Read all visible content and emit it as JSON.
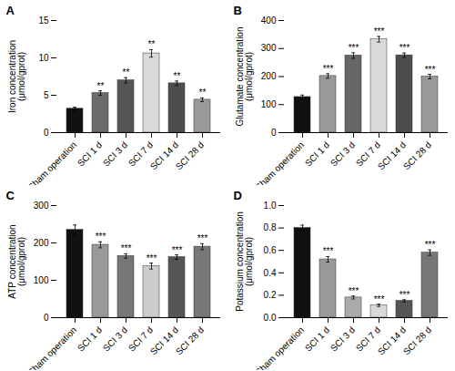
{
  "chart_data": [
    {
      "type": "bar",
      "title": "A",
      "ylabel": "Iron concentration\n(μmol/gprot)",
      "categories": [
        "Sham operation",
        "SCI 1 d",
        "SCI 3 d",
        "SCI 7 d",
        "SCI 14 d",
        "SCI 28 d"
      ],
      "values": [
        3.2,
        5.3,
        7.0,
        10.6,
        6.6,
        4.4
      ],
      "errors": [
        0.2,
        0.3,
        0.35,
        0.5,
        0.3,
        0.25
      ],
      "colors": [
        "#111111",
        "#6b6b6b",
        "#555555",
        "#d9d9d9",
        "#4d4d4d",
        "#999999"
      ],
      "annotations": [
        null,
        "**",
        "**",
        "**",
        "**",
        "**"
      ],
      "ylim": [
        0,
        15
      ],
      "yticks": [
        0,
        5,
        10,
        15
      ],
      "grid": false
    },
    {
      "type": "bar",
      "title": "B",
      "ylabel": "Glutamate concentration\n(μmol/gprot)",
      "categories": [
        "Sham operation",
        "SCI 1 d",
        "SCI 3 d",
        "SCI 7 d",
        "SCI 14 d",
        "SCI 28 d"
      ],
      "values": [
        127,
        202,
        275,
        333,
        276,
        200
      ],
      "errors": [
        7,
        8,
        10,
        10,
        8,
        8
      ],
      "colors": [
        "#111111",
        "#999999",
        "#666666",
        "#d9d9d9",
        "#4d4d4d",
        "#999999"
      ],
      "annotations": [
        null,
        "***",
        "***",
        "***",
        "***",
        "***"
      ],
      "ylim": [
        0,
        400
      ],
      "yticks": [
        0,
        100,
        200,
        300,
        400
      ],
      "grid": false
    },
    {
      "type": "bar",
      "title": "C",
      "ylabel": "ATP concentration\n(μmol/gprot)",
      "categories": [
        "Sham operation",
        "SCI 1 d",
        "SCI 3 d",
        "SCI 7 d",
        "SCI 14 d",
        "SCI 28 d"
      ],
      "values": [
        235,
        195,
        165,
        138,
        162,
        190
      ],
      "errors": [
        13,
        8,
        6,
        8,
        6,
        8
      ],
      "colors": [
        "#111111",
        "#999999",
        "#777777",
        "#cccccc",
        "#555555",
        "#777777"
      ],
      "annotations": [
        null,
        "***",
        "***",
        "***",
        "***",
        "***"
      ],
      "ylim": [
        0,
        300
      ],
      "yticks": [
        0,
        100,
        200,
        300
      ],
      "grid": false
    },
    {
      "type": "bar",
      "title": "D",
      "ylabel": "Potassium concentration\n(μmol/gprot)",
      "categories": [
        "Sham operation",
        "SCI 1 d",
        "SCI 3 d",
        "SCI 7 d",
        "SCI 14 d",
        "SCI 28 d"
      ],
      "values": [
        0.8,
        0.52,
        0.18,
        0.11,
        0.15,
        0.58
      ],
      "errors": [
        0.025,
        0.025,
        0.013,
        0.01,
        0.01,
        0.025
      ],
      "colors": [
        "#111111",
        "#999999",
        "#aaaaaa",
        "#d9d9d9",
        "#555555",
        "#777777"
      ],
      "annotations": [
        null,
        "***",
        "***",
        "***",
        "***",
        "***"
      ],
      "ylim": [
        0,
        1
      ],
      "yticks": [
        {
          "value": 0,
          "label": "0.0"
        },
        0.2,
        0.4,
        0.6,
        0.8,
        {
          "value": 1,
          "label": "1.0"
        }
      ],
      "grid": false
    }
  ]
}
